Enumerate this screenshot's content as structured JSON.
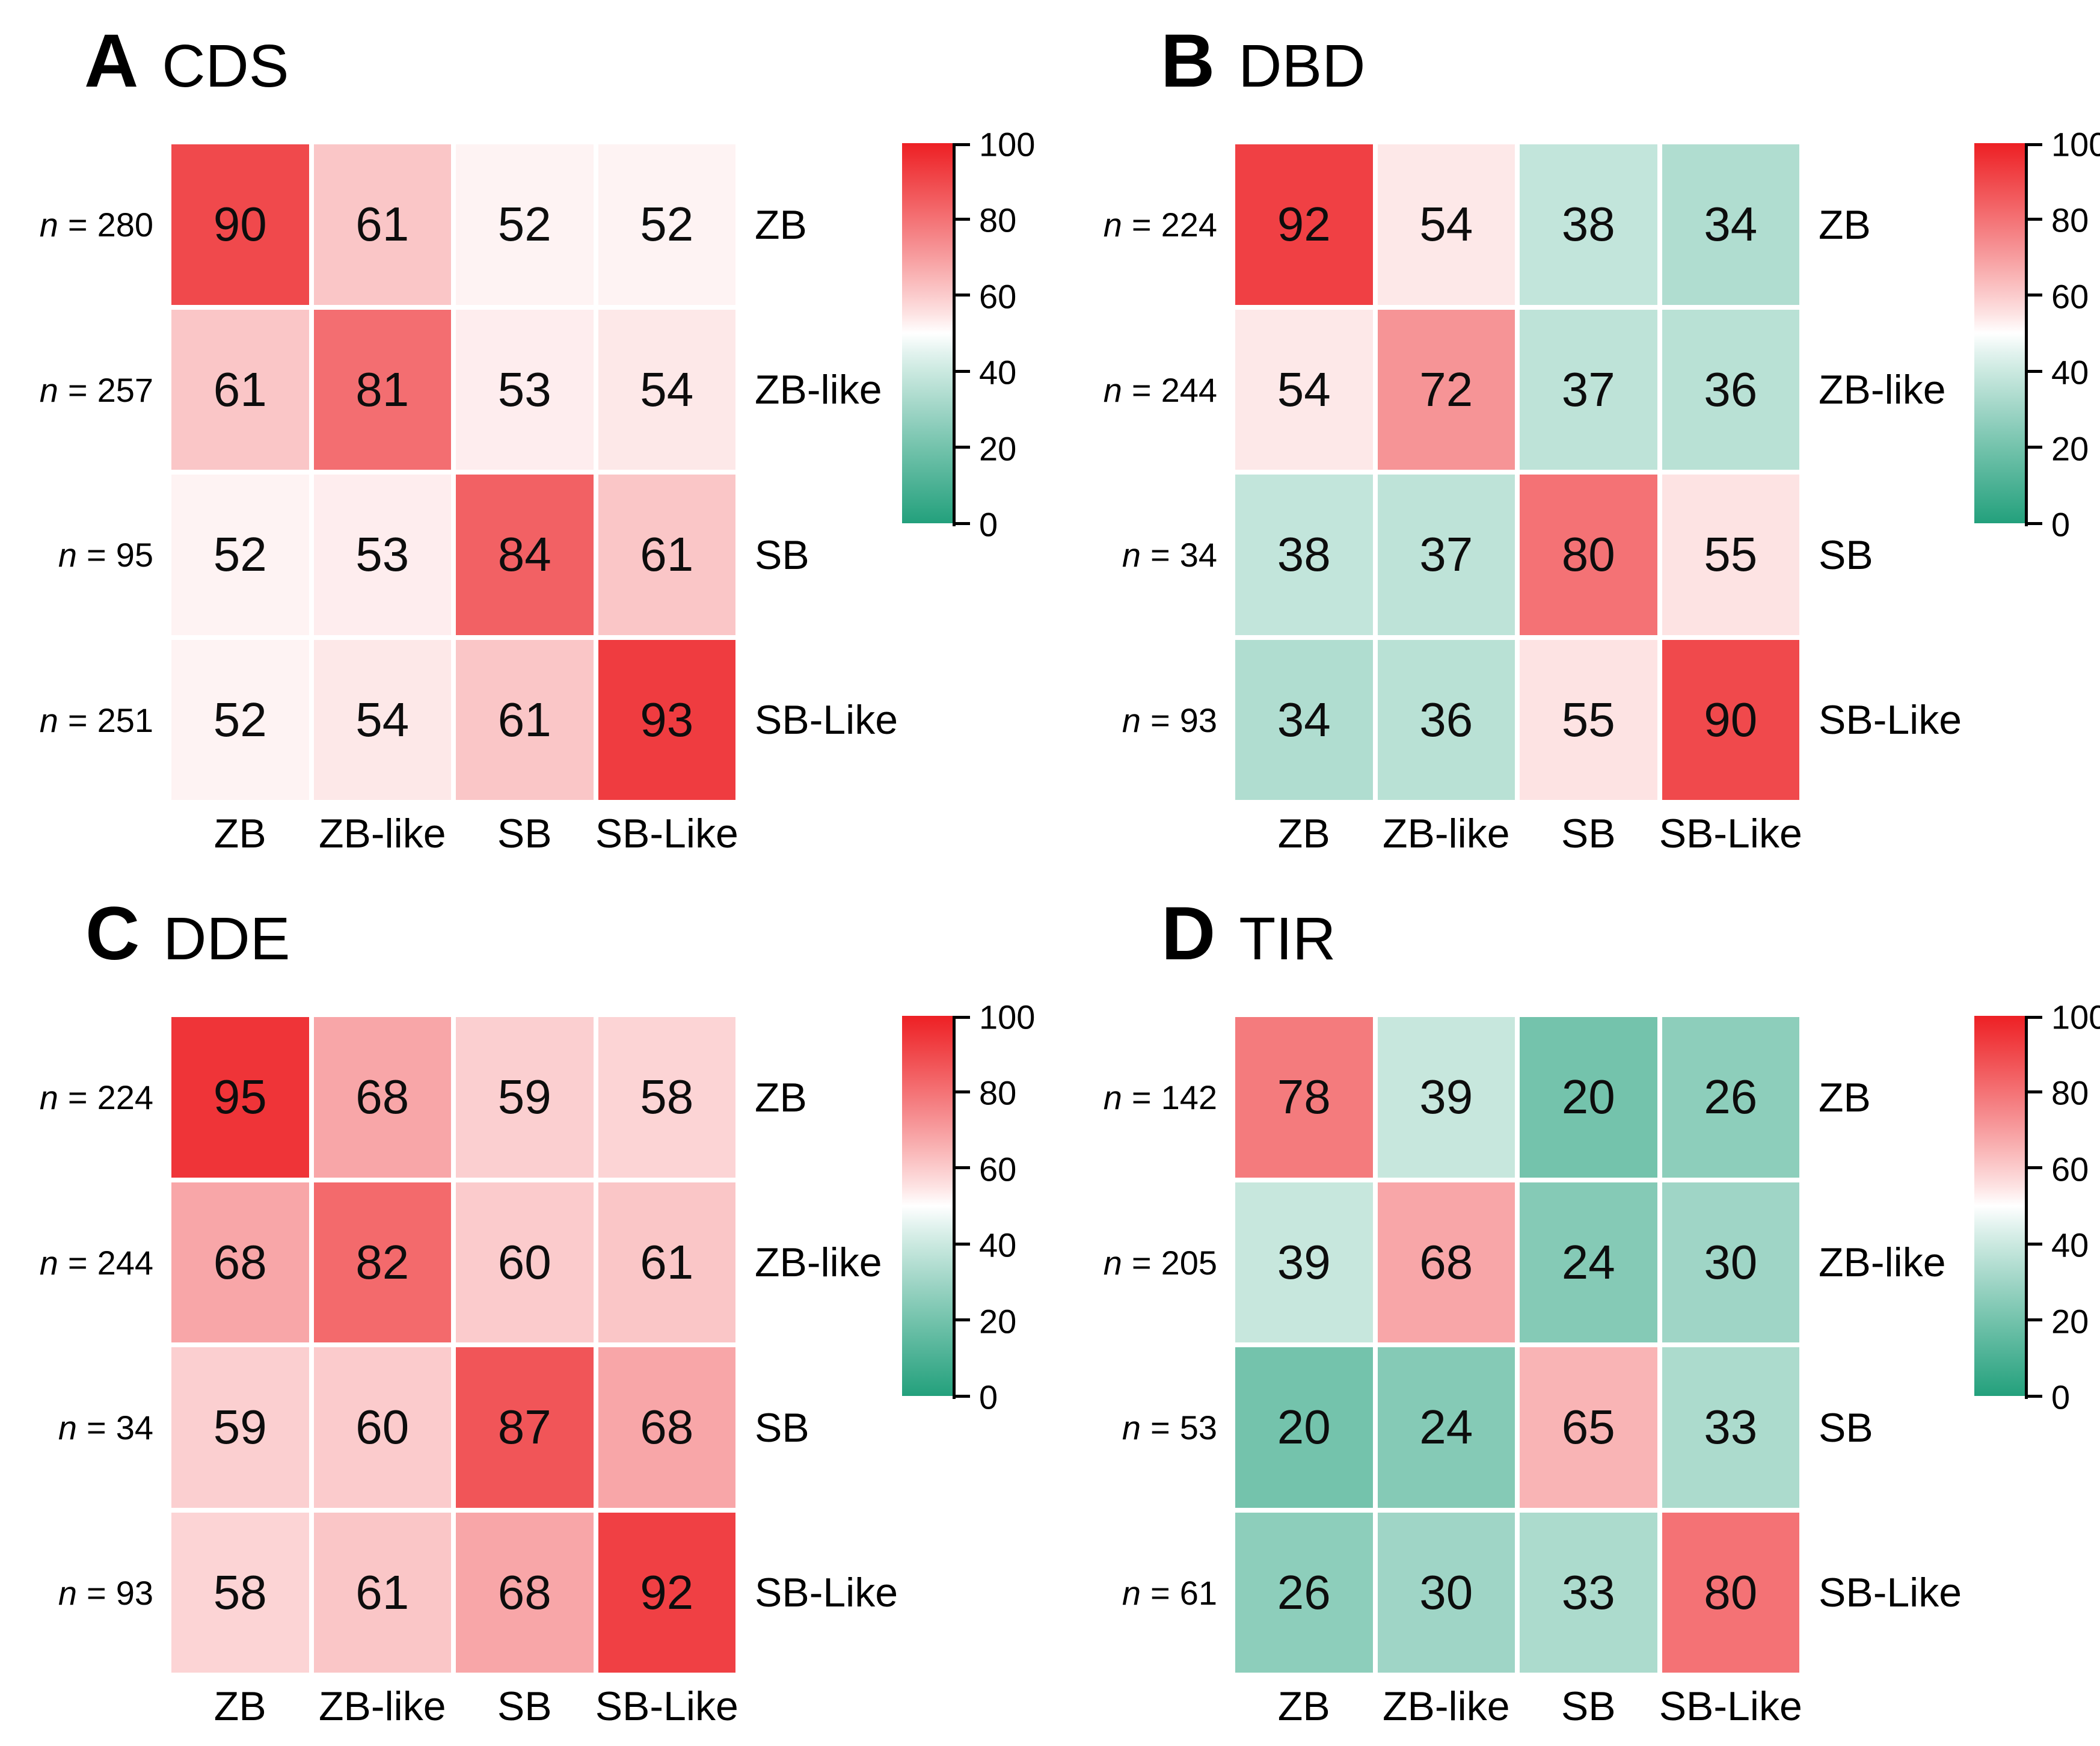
{
  "chart_data": [
    {
      "type": "heatmap",
      "panel": "A",
      "title": "CDS",
      "x_labels": [
        "ZB",
        "ZB-like",
        "SB",
        "SB-Like"
      ],
      "y_labels": [
        "ZB",
        "ZB-like",
        "SB",
        "SB-Like"
      ],
      "n_per_row": [
        280,
        257,
        95,
        251
      ],
      "values": [
        [
          90,
          61,
          52,
          52
        ],
        [
          61,
          81,
          53,
          54
        ],
        [
          52,
          53,
          84,
          61
        ],
        [
          52,
          54,
          61,
          93
        ]
      ],
      "colorbar": {
        "min": 0,
        "max": 100,
        "ticks": [
          100,
          80,
          60,
          40,
          20,
          0
        ]
      }
    },
    {
      "type": "heatmap",
      "panel": "B",
      "title": "DBD",
      "x_labels": [
        "ZB",
        "ZB-like",
        "SB",
        "SB-Like"
      ],
      "y_labels": [
        "ZB",
        "ZB-like",
        "SB",
        "SB-Like"
      ],
      "n_per_row": [
        224,
        244,
        34,
        93
      ],
      "values": [
        [
          92,
          54,
          38,
          34
        ],
        [
          54,
          72,
          37,
          36
        ],
        [
          38,
          37,
          80,
          55
        ],
        [
          34,
          36,
          55,
          90
        ]
      ],
      "colorbar": {
        "min": 0,
        "max": 100,
        "ticks": [
          100,
          80,
          60,
          40,
          20,
          0
        ]
      }
    },
    {
      "type": "heatmap",
      "panel": "C",
      "title": "DDE",
      "x_labels": [
        "ZB",
        "ZB-like",
        "SB",
        "SB-Like"
      ],
      "y_labels": [
        "ZB",
        "ZB-like",
        "SB",
        "SB-Like"
      ],
      "n_per_row": [
        224,
        244,
        34,
        93
      ],
      "values": [
        [
          95,
          68,
          59,
          58
        ],
        [
          68,
          82,
          60,
          61
        ],
        [
          59,
          60,
          87,
          68
        ],
        [
          58,
          61,
          68,
          92
        ]
      ],
      "colorbar": {
        "min": 0,
        "max": 100,
        "ticks": [
          100,
          80,
          60,
          40,
          20,
          0
        ]
      }
    },
    {
      "type": "heatmap",
      "panel": "D",
      "title": "TIR",
      "x_labels": [
        "ZB",
        "ZB-like",
        "SB",
        "SB-Like"
      ],
      "y_labels": [
        "ZB",
        "ZB-like",
        "SB",
        "SB-Like"
      ],
      "n_per_row": [
        142,
        205,
        53,
        61
      ],
      "values": [
        [
          78,
          39,
          20,
          26
        ],
        [
          39,
          68,
          24,
          30
        ],
        [
          20,
          24,
          65,
          33
        ],
        [
          26,
          30,
          33,
          80
        ]
      ],
      "colorbar": {
        "min": 0,
        "max": 100,
        "ticks": [
          100,
          80,
          60,
          40,
          20,
          0
        ]
      }
    }
  ],
  "ui": {
    "n_symbol": "n",
    "equals_sign": "=",
    "colors": {
      "scale_high": "#ed2024",
      "scale_mid": "#ffffff",
      "scale_low": "#23a07c",
      "cell_text": "#0d0d0d",
      "axis": "#000000"
    }
  }
}
